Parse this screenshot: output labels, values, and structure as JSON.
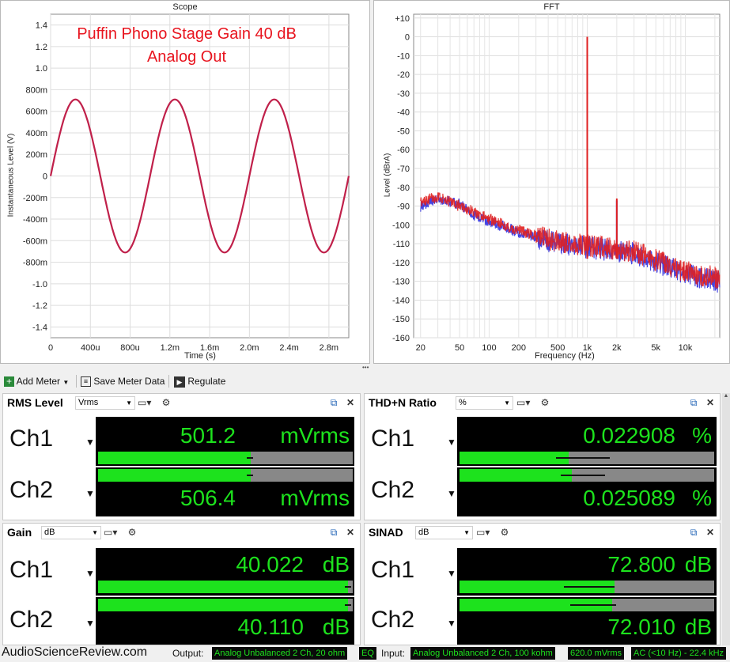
{
  "scope": {
    "title": "Scope",
    "ylabel": "Instantaneous Level (V)",
    "xlabel": "Time (s)",
    "overlay_line1": "Puffin Phono Stage Gain 40 dB",
    "overlay_line2": "Analog Out",
    "yticks": [
      "1.4",
      "1.2",
      "1.0",
      "800m",
      "600m",
      "400m",
      "200m",
      "0",
      "-200m",
      "-400m",
      "-600m",
      "-800m",
      "-1.0",
      "-1.2",
      "-1.4"
    ],
    "xticks": [
      "0",
      "400u",
      "800u",
      "1.2m",
      "1.6m",
      "2.0m",
      "2.4m",
      "2.8m"
    ]
  },
  "fft": {
    "title": "FFT",
    "ylabel": "Level (dBrA)",
    "xlabel": "Frequency (Hz)",
    "yticks": [
      "+10",
      "0",
      "-10",
      "-20",
      "-30",
      "-40",
      "-50",
      "-60",
      "-70",
      "-80",
      "-90",
      "-100",
      "-110",
      "-120",
      "-130",
      "-140",
      "-150",
      "-160"
    ],
    "xticks": [
      "20",
      "50",
      "100",
      "200",
      "500",
      "1k",
      "2k",
      "5k",
      "10k"
    ]
  },
  "chart_data": [
    {
      "type": "line",
      "title": "Scope",
      "xlabel": "Time (s)",
      "ylabel": "Instantaneous Level (V)",
      "xlim": [
        0,
        0.003
      ],
      "ylim": [
        -1.5,
        1.5
      ],
      "series": [
        {
          "name": "",
          "color": "#c0204a",
          "frequency_hz": 1000,
          "amplitude_v": 0.71,
          "x": [
            0,
            0.00025,
            0.0005,
            0.00075,
            0.001,
            0.00125,
            0.0015,
            0.00175,
            0.002,
            0.00225,
            0.0025,
            0.00275,
            0.003
          ],
          "y": [
            0,
            0.71,
            0,
            -0.71,
            0,
            0.71,
            0,
            -0.71,
            0,
            0.71,
            0,
            -0.71,
            0
          ]
        }
      ]
    },
    {
      "type": "line",
      "title": "FFT",
      "xlabel": "Frequency (Hz)",
      "ylabel": "Level (dBrA)",
      "xscale": "log",
      "xlim": [
        17,
        22400
      ],
      "ylim": [
        -160,
        12
      ],
      "series": [
        {
          "name": "",
          "color": "#e02020",
          "x": [
            20,
            30,
            50,
            70,
            100,
            200,
            500,
            1000,
            2000,
            3000,
            4000,
            5000,
            10000,
            20000
          ],
          "y": [
            -88,
            -85,
            -90,
            -93,
            -97,
            -103,
            -109,
            0,
            -86,
            -114,
            -108,
            -118,
            -125,
            -128
          ]
        },
        {
          "name": "",
          "color": "#3030e0",
          "x": [
            20,
            30,
            50,
            70,
            100,
            200,
            500,
            1000,
            2000,
            3000,
            4000,
            5000,
            10000,
            20000
          ],
          "y": [
            -90,
            -86,
            -89,
            -95,
            -98,
            -104,
            -110,
            0,
            -87,
            -115,
            -110,
            -119,
            -126,
            -130
          ]
        }
      ]
    }
  ],
  "toolbar": {
    "add_meter": "Add Meter",
    "save_meter_data": "Save Meter Data",
    "regulate": "Regulate"
  },
  "meters": {
    "rms": {
      "name": "RMS Level",
      "unit_select": "Vrms",
      "ch1": {
        "label": "Ch1",
        "value": "501.2",
        "unit": "mVrms",
        "bar_fraction": 0.6
      },
      "ch2": {
        "label": "Ch2",
        "value": "506.4",
        "unit": "mVrms",
        "bar_fraction": 0.6
      }
    },
    "thd": {
      "name": "THD+N Ratio",
      "unit_select": "%",
      "ch1": {
        "label": "Ch1",
        "value": "0.022908",
        "unit": "%",
        "bar_fraction": 0.43
      },
      "ch2": {
        "label": "Ch2",
        "value": "0.025089",
        "unit": "%",
        "bar_fraction": 0.44
      }
    },
    "gain": {
      "name": "Gain",
      "unit_select": "dB",
      "ch1": {
        "label": "Ch1",
        "value": "40.022",
        "unit": "dB",
        "bar_fraction": 0.98
      },
      "ch2": {
        "label": "Ch2",
        "value": "40.110",
        "unit": "dB",
        "bar_fraction": 0.98
      }
    },
    "sinad": {
      "name": "SINAD",
      "unit_select": "dB",
      "ch1": {
        "label": "Ch1",
        "value": "72.800",
        "unit": "dB",
        "bar_fraction": 0.61
      },
      "ch2": {
        "label": "Ch2",
        "value": "72.010",
        "unit": "dB",
        "bar_fraction": 0.6
      }
    }
  },
  "status": {
    "watermark": "AudioScienceReview.com",
    "output_label": "Output:",
    "output_value": "Analog Unbalanced 2 Ch, 20 ohm",
    "eq": "EQ",
    "input_label": "Input:",
    "input_value": "Analog Unbalanced 2 Ch, 100 kohm",
    "input_level": "620.0 mVrms",
    "filter": "AC (<10 Hz) - 22.4 kHz"
  }
}
